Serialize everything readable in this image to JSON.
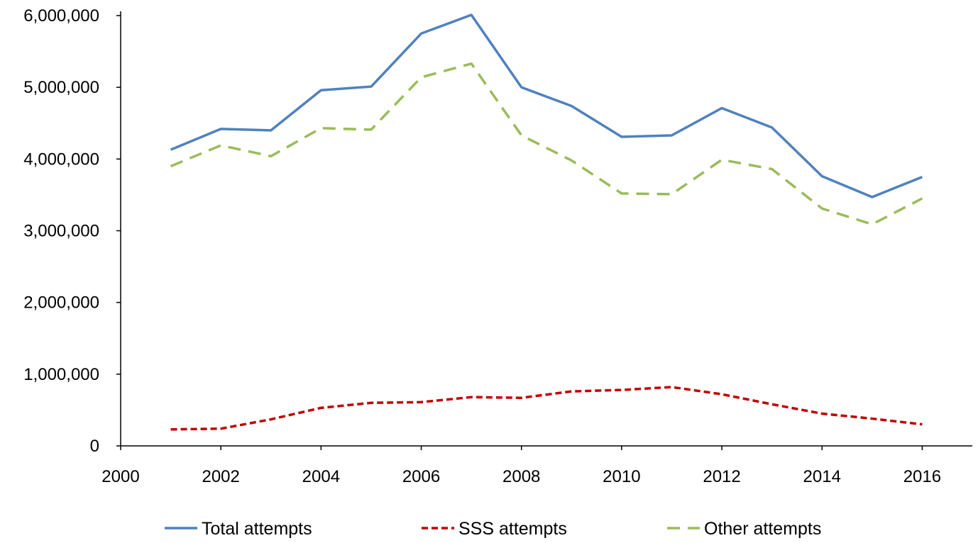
{
  "chart_data": {
    "type": "line",
    "title": "",
    "xlabel": "",
    "ylabel": "",
    "xlim": [
      2000,
      2017
    ],
    "ylim": [
      0,
      6000000
    ],
    "x_ticks": [
      2000,
      2002,
      2004,
      2006,
      2008,
      2010,
      2012,
      2014,
      2016
    ],
    "x_tick_labels": [
      "2000",
      "2002",
      "2004",
      "2006",
      "2008",
      "2010",
      "2012",
      "2014",
      "2016"
    ],
    "y_ticks": [
      0,
      1000000,
      2000000,
      3000000,
      4000000,
      5000000,
      6000000
    ],
    "y_tick_labels": [
      "0",
      "1,000,000",
      "2,000,000",
      "3,000,000",
      "4,000,000",
      "5,000,000",
      "6,000,000"
    ],
    "grid": false,
    "legend_position": "bottom",
    "x": [
      2001,
      2002,
      2003,
      2004,
      2005,
      2006,
      2007,
      2008,
      2009,
      2010,
      2011,
      2012,
      2013,
      2014,
      2015,
      2016
    ],
    "series": [
      {
        "name": "Total attempts",
        "color": "#4f81bd",
        "style": "solid",
        "values": [
          4130000,
          4420000,
          4400000,
          4960000,
          5010000,
          5750000,
          6010000,
          5000000,
          4740000,
          4310000,
          4330000,
          4710000,
          4440000,
          3760000,
          3470000,
          3750000
        ]
      },
      {
        "name": "SSS attempts",
        "color": "#c00000",
        "style": "short-dash",
        "values": [
          230000,
          240000,
          370000,
          530000,
          600000,
          610000,
          680000,
          670000,
          760000,
          780000,
          820000,
          720000,
          580000,
          450000,
          380000,
          300000
        ]
      },
      {
        "name": "Other attempts",
        "color": "#9bbb59",
        "style": "long-dash",
        "values": [
          3900000,
          4190000,
          4040000,
          4430000,
          4410000,
          5140000,
          5330000,
          4330000,
          3980000,
          3520000,
          3510000,
          3990000,
          3860000,
          3310000,
          3090000,
          3450000
        ]
      }
    ]
  }
}
